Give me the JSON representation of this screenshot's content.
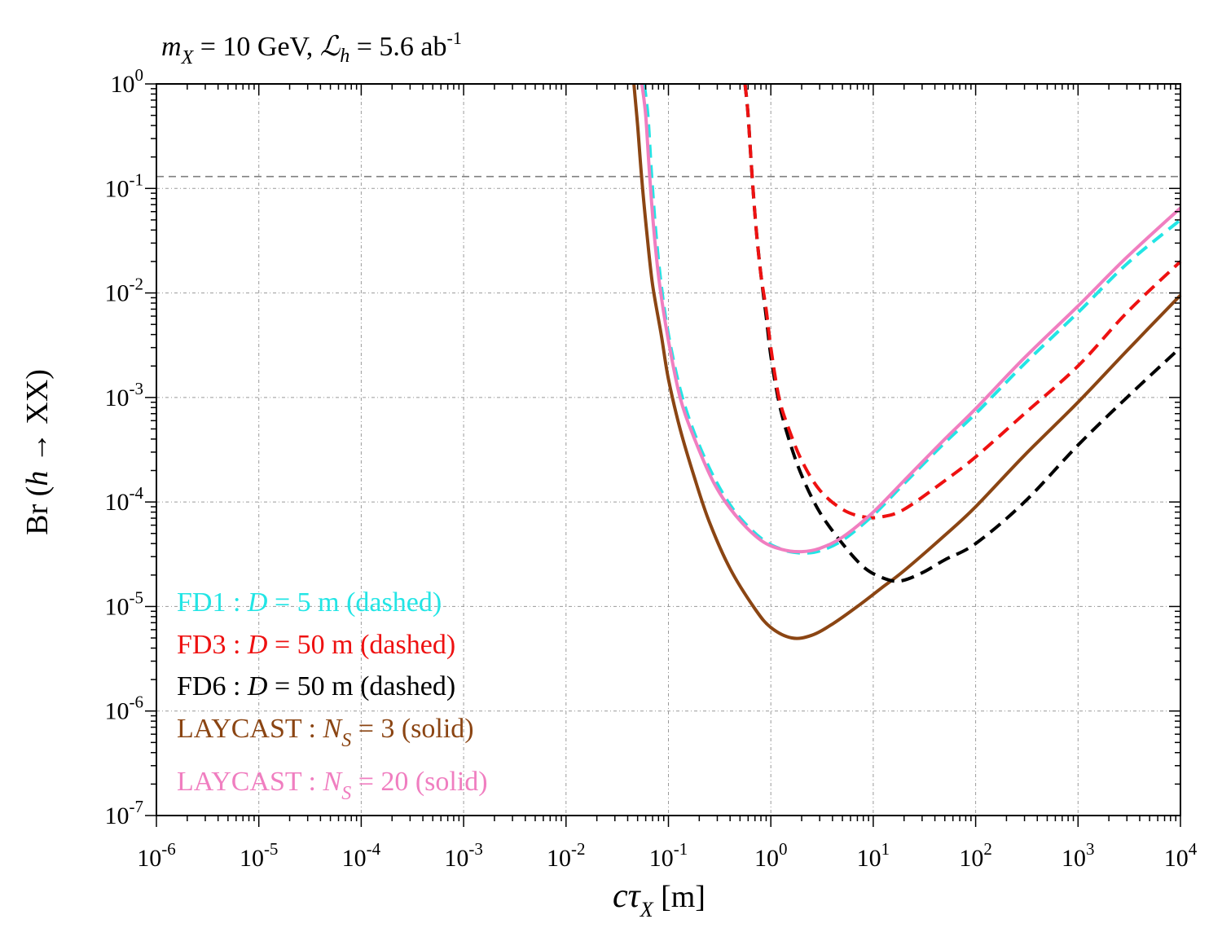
{
  "chart_data": {
    "type": "line",
    "title": {
      "m_symbol": "m",
      "m_sub": "X",
      "m_value": " = 10 GeV, ",
      "lumi_symbol": "ℒ",
      "lumi_sub": "h",
      "lumi_value": " = 5.6 ab",
      "lumi_sup": "-1"
    },
    "xlabel": {
      "main": "cτ",
      "sub": "X",
      "unit": " [m]"
    },
    "ylabel": {
      "pre": "Br (",
      "italic": "h",
      "post": " → XX)"
    },
    "x_scale": "log",
    "y_scale": "log",
    "xlim": [
      1e-06,
      10000.0
    ],
    "ylim": [
      1e-07,
      1
    ],
    "grid": true,
    "x_ticks": [
      {
        "base": "10",
        "exp": "-6"
      },
      {
        "base": "10",
        "exp": "-5"
      },
      {
        "base": "10",
        "exp": "-4"
      },
      {
        "base": "10",
        "exp": "-3"
      },
      {
        "base": "10",
        "exp": "-2"
      },
      {
        "base": "10",
        "exp": "-1"
      },
      {
        "base": "10",
        "exp": "0"
      },
      {
        "base": "10",
        "exp": "1"
      },
      {
        "base": "10",
        "exp": "2"
      },
      {
        "base": "10",
        "exp": "3"
      },
      {
        "base": "10",
        "exp": "4"
      }
    ],
    "y_ticks": [
      {
        "base": "10",
        "exp": "0"
      },
      {
        "base": "10",
        "exp": "-1"
      },
      {
        "base": "10",
        "exp": "-2"
      },
      {
        "base": "10",
        "exp": "-3"
      },
      {
        "base": "10",
        "exp": "-4"
      },
      {
        "base": "10",
        "exp": "-5"
      },
      {
        "base": "10",
        "exp": "-6"
      },
      {
        "base": "10",
        "exp": "-7"
      }
    ],
    "reference_line": {
      "y": 0.13,
      "color": "#808080",
      "style": "dashed"
    },
    "series": [
      {
        "name": "FD1",
        "color": "#22e5e5",
        "style": "dashed",
        "legend": {
          "prefix": "FD1 : ",
          "var": "D",
          "var_sub": "",
          "suffix": " = 5 m (dashed)"
        },
        "points": [
          [
            0.058,
            1.0
          ],
          [
            0.063,
            0.5
          ],
          [
            0.068,
            0.15
          ],
          [
            0.075,
            0.04
          ],
          [
            0.085,
            0.012
          ],
          [
            0.1,
            0.004
          ],
          [
            0.13,
            0.0012
          ],
          [
            0.18,
            0.00045
          ],
          [
            0.28,
            0.00017
          ],
          [
            0.45,
            8e-05
          ],
          [
            0.8,
            4.5e-05
          ],
          [
            1.3,
            3.5e-05
          ],
          [
            2.0,
            3.25e-05
          ],
          [
            3.0,
            3.4e-05
          ],
          [
            5.0,
            4.3e-05
          ],
          [
            10,
            7.5e-05
          ],
          [
            20,
            0.00015
          ],
          [
            50,
            0.00037
          ],
          [
            100,
            0.0007
          ],
          [
            300,
            0.0021
          ],
          [
            1000,
            0.0065
          ],
          [
            3000,
            0.019
          ],
          [
            10000,
            0.05
          ]
        ]
      },
      {
        "name": "FD3",
        "color": "#ee1111",
        "style": "dashed",
        "legend": {
          "prefix": "FD3 : ",
          "var": "D",
          "var_sub": "",
          "suffix": " = 50 m (dashed)"
        },
        "points": [
          [
            0.56,
            1.0
          ],
          [
            0.6,
            0.5
          ],
          [
            0.65,
            0.15
          ],
          [
            0.72,
            0.04
          ],
          [
            0.8,
            0.015
          ],
          [
            0.9,
            0.007
          ],
          [
            1.0,
            0.003
          ],
          [
            1.2,
            0.001
          ],
          [
            1.5,
            0.0005
          ],
          [
            2.0,
            0.00025
          ],
          [
            3.0,
            0.00013
          ],
          [
            5.0,
            8.5e-05
          ],
          [
            8.0,
            7.2e-05
          ],
          [
            12,
            7.2e-05
          ],
          [
            20,
            8.5e-05
          ],
          [
            50,
            0.00016
          ],
          [
            100,
            0.00027
          ],
          [
            300,
            0.0007
          ],
          [
            1000,
            0.002
          ],
          [
            3000,
            0.0065
          ],
          [
            10000,
            0.02
          ]
        ]
      },
      {
        "name": "FD6",
        "color": "#000000",
        "style": "dashed",
        "legend": {
          "prefix": "FD6 : ",
          "var": "D",
          "var_sub": "",
          "suffix": " = 50 m (dashed)"
        },
        "points": [
          [
            0.56,
            1.0
          ],
          [
            0.6,
            0.5
          ],
          [
            0.65,
            0.15
          ],
          [
            0.72,
            0.04
          ],
          [
            0.8,
            0.015
          ],
          [
            0.9,
            0.006
          ],
          [
            1.0,
            0.0025
          ],
          [
            1.2,
            0.0009
          ],
          [
            1.5,
            0.0004
          ],
          [
            2.0,
            0.00018
          ],
          [
            3.0,
            8e-05
          ],
          [
            5.0,
            4e-05
          ],
          [
            8.0,
            2.4e-05
          ],
          [
            12,
            1.9e-05
          ],
          [
            18,
            1.75e-05
          ],
          [
            30,
            2.1e-05
          ],
          [
            50,
            2.8e-05
          ],
          [
            100,
            4e-05
          ],
          [
            300,
            0.0001
          ],
          [
            1000,
            0.00035
          ],
          [
            3000,
            0.001
          ],
          [
            10000,
            0.003
          ]
        ]
      },
      {
        "name": "LAYCAST N_S = 3",
        "color": "#8b4513",
        "style": "solid",
        "legend": {
          "prefix": "LAYCAST : ",
          "var": "N",
          "var_sub": "S",
          "suffix": " = 3 (solid)"
        },
        "points": [
          [
            0.046,
            1.0
          ],
          [
            0.05,
            0.4
          ],
          [
            0.055,
            0.12
          ],
          [
            0.062,
            0.035
          ],
          [
            0.07,
            0.012
          ],
          [
            0.085,
            0.004
          ],
          [
            0.1,
            0.0015
          ],
          [
            0.13,
            0.0005
          ],
          [
            0.18,
            0.00017
          ],
          [
            0.25,
            6.5e-05
          ],
          [
            0.4,
            2.3e-05
          ],
          [
            0.7,
            9.5e-06
          ],
          [
            1.0,
            6.3e-06
          ],
          [
            1.6,
            5e-06
          ],
          [
            2.5,
            5.3e-06
          ],
          [
            4.0,
            6.8e-06
          ],
          [
            7.0,
            1e-05
          ],
          [
            12,
            1.5e-05
          ],
          [
            20,
            2.2e-05
          ],
          [
            50,
            4.8e-05
          ],
          [
            100,
            9e-05
          ],
          [
            300,
            0.00028
          ],
          [
            1000,
            0.0009
          ],
          [
            3000,
            0.0028
          ],
          [
            10000,
            0.0095
          ]
        ]
      },
      {
        "name": "LAYCAST N_S = 20",
        "color": "#f07ec0",
        "style": "solid",
        "legend": {
          "prefix": "LAYCAST : ",
          "var": "N",
          "var_sub": "S",
          "suffix": " = 20 (solid)"
        },
        "points": [
          [
            0.055,
            1.0
          ],
          [
            0.06,
            0.5
          ],
          [
            0.065,
            0.15
          ],
          [
            0.072,
            0.04
          ],
          [
            0.082,
            0.012
          ],
          [
            0.1,
            0.0035
          ],
          [
            0.13,
            0.001
          ],
          [
            0.18,
            0.0004
          ],
          [
            0.28,
            0.00015
          ],
          [
            0.45,
            7.5e-05
          ],
          [
            0.8,
            4.3e-05
          ],
          [
            1.3,
            3.5e-05
          ],
          [
            2.0,
            3.35e-05
          ],
          [
            3.0,
            3.6e-05
          ],
          [
            5.0,
            4.6e-05
          ],
          [
            10,
            8e-05
          ],
          [
            20,
            0.00016
          ],
          [
            50,
            0.0004
          ],
          [
            100,
            0.00078
          ],
          [
            300,
            0.0024
          ],
          [
            1000,
            0.0075
          ],
          [
            3000,
            0.022
          ],
          [
            10000,
            0.065
          ]
        ]
      }
    ]
  }
}
